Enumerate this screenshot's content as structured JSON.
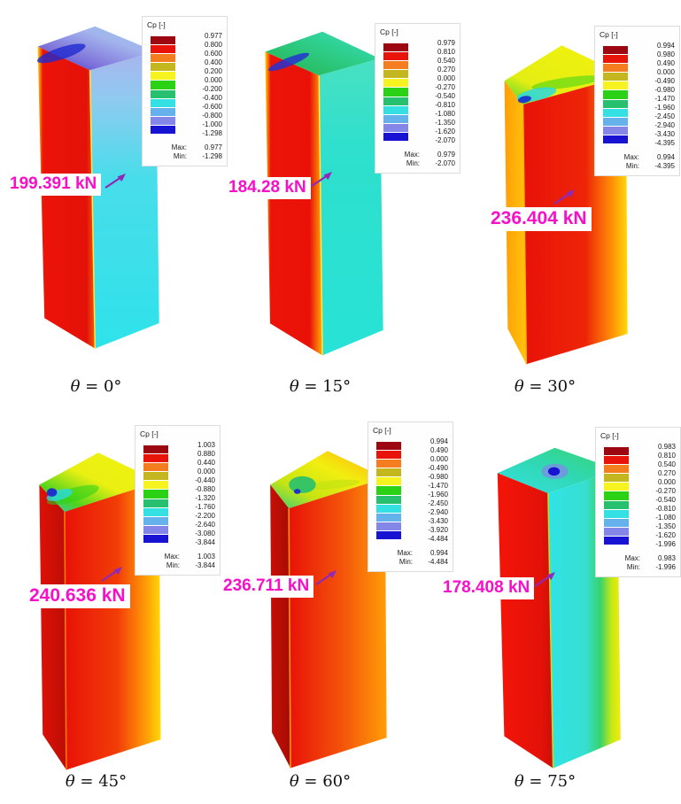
{
  "chart_data": {
    "type": "heatmap",
    "legend_title": "Cp [-]",
    "panels": [
      {
        "theta_deg": 0,
        "force_kN": 199.391,
        "cp_scale_boundaries": [
          0.977,
          0.8,
          0.6,
          0.4,
          0.2,
          0.0,
          -0.2,
          -0.4,
          -0.6,
          -0.8,
          -1.0,
          -1.298
        ],
        "cp_max": 0.977,
        "cp_min": -1.298
      },
      {
        "theta_deg": 15,
        "force_kN": 184.28,
        "cp_scale_boundaries": [
          0.979,
          0.81,
          0.54,
          0.27,
          0.0,
          -0.27,
          -0.54,
          -0.81,
          -1.08,
          -1.35,
          -1.62,
          -2.07
        ],
        "cp_max": 0.979,
        "cp_min": -2.07
      },
      {
        "theta_deg": 30,
        "force_kN": 236.404,
        "cp_scale_boundaries": [
          0.994,
          0.98,
          0.49,
          0.0,
          -0.49,
          -0.98,
          -1.47,
          -1.96,
          -2.45,
          -2.94,
          -3.43,
          -4.395
        ],
        "cp_max": 0.994,
        "cp_min": -4.395
      },
      {
        "theta_deg": 45,
        "force_kN": 240.636,
        "cp_scale_boundaries": [
          1.003,
          0.88,
          0.44,
          0.0,
          -0.44,
          -0.88,
          -1.32,
          -1.76,
          -2.2,
          -2.64,
          -3.08,
          -3.844
        ],
        "cp_max": 1.003,
        "cp_min": -3.844
      },
      {
        "theta_deg": 60,
        "force_kN": 236.711,
        "cp_scale_boundaries": [
          0.994,
          0.49,
          0.0,
          -0.49,
          -0.98,
          -1.47,
          -1.96,
          -2.45,
          -2.94,
          -3.43,
          -3.92,
          -4.484
        ],
        "cp_max": 0.994,
        "cp_min": -4.484
      },
      {
        "theta_deg": 75,
        "force_kN": 178.408,
        "cp_scale_boundaries": [
          0.983,
          0.81,
          0.54,
          0.27,
          0.0,
          -0.27,
          -0.54,
          -0.81,
          -1.08,
          -1.35,
          -1.62,
          -1.996
        ],
        "cp_max": 0.983,
        "cp_min": -1.996
      }
    ]
  },
  "figure": {
    "colorbar_title": "Cp [-]",
    "max_label": "Max:",
    "min_label": "Min:",
    "force_color": "#f80fc8",
    "arrow_color": "#8f2ab8",
    "scale_colors": [
      "#9d0712",
      "#e81309",
      "#f47d20",
      "#c3b61e",
      "#f6f321",
      "#2ad115",
      "#27c06e",
      "#35e0e3",
      "#64b1ec",
      "#8486e8",
      "#1813d3"
    ]
  },
  "panels": [
    {
      "caption_symbol": "θ",
      "caption_rest": " = 0°",
      "force_label": "199.391 kN",
      "legend_values": [
        "0.977",
        "0.800",
        "0.600",
        "0.400",
        "0.200",
        "0.000",
        "-0.200",
        "-0.400",
        "-0.600",
        "-0.800",
        "-1.000",
        "-1.298"
      ],
      "max": "0.977",
      "min": "-1.298",
      "view": "A",
      "tower": {
        "left": [
          [
            0,
            "#ffd908"
          ],
          [
            9,
            "#ec1309"
          ],
          [
            85,
            "#e31208"
          ],
          [
            100,
            "#ef5b0a"
          ]
        ],
        "right": [
          [
            0,
            "#a9b4ee"
          ],
          [
            16,
            "#8fcaf0"
          ],
          [
            42,
            "#49ddea"
          ],
          [
            100,
            "#2ee2ea"
          ]
        ],
        "right_dir": "v",
        "top": [
          [
            0,
            "#2433cf"
          ],
          [
            30,
            "#7f72da"
          ],
          [
            65,
            "#a2b4ec"
          ],
          [
            100,
            "#93c6ee"
          ]
        ],
        "edge": "#ffe93c",
        "spots": [
          {
            "c": [
              58,
              42
            ],
            "r": [
              30,
              7
            ],
            "rot": -18,
            "col": "#1f2bd0",
            "op": 0.8
          }
        ]
      }
    },
    {
      "caption_symbol": "θ",
      "caption_rest": " = 15°",
      "force_label": "184.28 kN",
      "legend_values": [
        "0.979",
        "0.810",
        "0.540",
        "0.270",
        "0.000",
        "-0.270",
        "-0.540",
        "-0.810",
        "-1.080",
        "-1.350",
        "-1.620",
        "-2.070"
      ],
      "max": "0.979",
      "min": "-2.070",
      "view": "B",
      "tower": {
        "left": [
          [
            0,
            "#ffd908"
          ],
          [
            10,
            "#ec1309"
          ],
          [
            78,
            "#ea1208"
          ],
          [
            100,
            "#ffae06"
          ]
        ],
        "right": [
          [
            0,
            "#49e0c2"
          ],
          [
            30,
            "#2ee0cd"
          ],
          [
            100,
            "#27e2d6"
          ]
        ],
        "right_dir": "v",
        "top": [
          [
            0,
            "#2a3bd2"
          ],
          [
            22,
            "#29bd64"
          ],
          [
            60,
            "#2ecf8e"
          ],
          [
            100,
            "#37e0c6"
          ]
        ],
        "edge": "#ffe93c",
        "spots": [
          {
            "c": [
              64,
              48
            ],
            "r": [
              26,
              5
            ],
            "rot": -22,
            "col": "#2633cf",
            "op": 0.85
          }
        ]
      }
    },
    {
      "caption_symbol": "θ",
      "caption_rest": " = 30°",
      "force_label": "236.404 kN",
      "legend_values": [
        "0.994",
        "0.980",
        "0.490",
        "0.000",
        "-0.490",
        "-0.980",
        "-1.470",
        "-1.960",
        "-2.450",
        "-2.940",
        "-3.430",
        "-4.395"
      ],
      "max": "0.994",
      "min": "-4.395",
      "view": "C",
      "tower": {
        "left": [
          [
            0,
            "#ff9d07"
          ],
          [
            100,
            "#ffc50a"
          ]
        ],
        "right": [
          [
            0,
            "#e81208"
          ],
          [
            60,
            "#ee2508"
          ],
          [
            85,
            "#ff9006"
          ],
          [
            100,
            "#ffd908"
          ]
        ],
        "right_dir": "h",
        "top": [
          [
            0,
            "#35d438"
          ],
          [
            28,
            "#e4ee12"
          ],
          [
            100,
            "#f4f30c"
          ]
        ],
        "edge": "#ffb306",
        "spots": [
          {
            "c": [
              104,
              64
            ],
            "r": [
              42,
              6
            ],
            "rot": -8,
            "col": "#2ad115",
            "op": 0.5
          },
          {
            "c": [
              68,
              78
            ],
            "r": [
              24,
              7
            ],
            "rot": -12,
            "col": "#2bd9e0",
            "op": 0.85
          },
          {
            "c": [
              54,
              84
            ],
            "r": [
              8,
              4
            ],
            "rot": -12,
            "col": "#1b2ad0",
            "op": 0.9
          }
        ]
      }
    },
    {
      "caption_symbol": "θ",
      "caption_rest": " = 45°",
      "force_label": "240.636 kN",
      "legend_values": [
        "1.003",
        "0.880",
        "0.440",
        "0.000",
        "-0.440",
        "-0.880",
        "-1.320",
        "-1.760",
        "-2.200",
        "-2.640",
        "-3.080",
        "-3.844"
      ],
      "max": "1.003",
      "min": "-3.844",
      "view": "D",
      "tower": {
        "left": [
          [
            0,
            "#df1107"
          ],
          [
            100,
            "#bb0e05"
          ]
        ],
        "right": [
          [
            0,
            "#e81208"
          ],
          [
            55,
            "#f23d07"
          ],
          [
            85,
            "#ff9d07"
          ],
          [
            100,
            "#ffd908"
          ]
        ],
        "right_dir": "h",
        "top": [
          [
            0,
            "#2bc4d9"
          ],
          [
            22,
            "#4fd41c"
          ],
          [
            50,
            "#e9f012"
          ],
          [
            100,
            "#f4f30c"
          ]
        ],
        "edge": "#ff7a06",
        "spots": [
          {
            "c": [
              74,
              70
            ],
            "r": [
              32,
              8
            ],
            "rot": -16,
            "col": "#2ad115",
            "op": 0.55
          },
          {
            "c": [
              58,
              70
            ],
            "r": [
              16,
              6
            ],
            "rot": -16,
            "col": "#2bd9e0",
            "op": 0.8
          },
          {
            "c": [
              49,
              67
            ],
            "r": [
              6,
              5
            ],
            "rot": 0,
            "col": "#1b2ad0",
            "op": 0.95
          }
        ]
      }
    },
    {
      "caption_symbol": "θ",
      "caption_rest": " = 60°",
      "force_label": "236.711 kN",
      "legend_values": [
        "0.994",
        "0.490",
        "0.000",
        "-0.490",
        "-0.980",
        "-1.470",
        "-1.960",
        "-2.450",
        "-2.940",
        "-3.430",
        "-3.920",
        "-4.484"
      ],
      "max": "0.994",
      "min": "-4.484",
      "view": "E",
      "tower": {
        "left": [
          [
            0,
            "#c60f06"
          ],
          [
            100,
            "#a50c04"
          ]
        ],
        "right": [
          [
            0,
            "#e81208"
          ],
          [
            55,
            "#f4540a"
          ],
          [
            100,
            "#ff9d07"
          ]
        ],
        "right_dir": "h",
        "top": [
          [
            0,
            "#2ecf7d"
          ],
          [
            28,
            "#c6e412"
          ],
          [
            60,
            "#f2ee10"
          ],
          [
            100,
            "#ffab07"
          ]
        ],
        "edge": "#ff9d07",
        "spots": [
          {
            "c": [
              110,
              60
            ],
            "r": [
              34,
              5
            ],
            "rot": -6,
            "col": "#bfe312",
            "op": 0.6
          },
          {
            "c": [
              76,
              60
            ],
            "r": [
              16,
              10
            ],
            "rot": 0,
            "col": "#27c06e",
            "op": 0.9
          },
          {
            "c": [
              70,
              68
            ],
            "r": [
              4,
              3
            ],
            "rot": 0,
            "col": "#1b2ad0",
            "op": 0.95
          }
        ]
      }
    },
    {
      "caption_symbol": "θ",
      "caption_rest": " = 75°",
      "force_label": "178.408 kN",
      "legend_values": [
        "0.983",
        "0.810",
        "0.540",
        "0.270",
        "0.000",
        "-0.270",
        "-0.540",
        "-0.810",
        "-1.080",
        "-1.350",
        "-1.620",
        "-1.996"
      ],
      "max": "0.983",
      "min": "-1.996",
      "view": "F",
      "tower": {
        "left": [
          [
            0,
            "#f41408"
          ],
          [
            80,
            "#e31208"
          ],
          [
            100,
            "#cb0f06"
          ]
        ],
        "right": [
          [
            0,
            "#31e3e6"
          ],
          [
            52,
            "#36dfd0"
          ],
          [
            72,
            "#37d36b"
          ],
          [
            88,
            "#c9e812"
          ],
          [
            100,
            "#eeed12"
          ]
        ],
        "right_dir": "h",
        "top": [
          [
            0,
            "#35e0e3"
          ],
          [
            50,
            "#2fd8b2"
          ],
          [
            100,
            "#3ad46e"
          ]
        ],
        "edge": "#bfe312",
        "spots": [
          {
            "c": [
              94,
              40
            ],
            "r": [
              16,
              9
            ],
            "rot": 0,
            "col": "#8486e8",
            "op": 0.7
          },
          {
            "c": [
              93,
              40
            ],
            "r": [
              7,
              5
            ],
            "rot": 0,
            "col": "#1813d3",
            "op": 1
          }
        ]
      }
    }
  ]
}
